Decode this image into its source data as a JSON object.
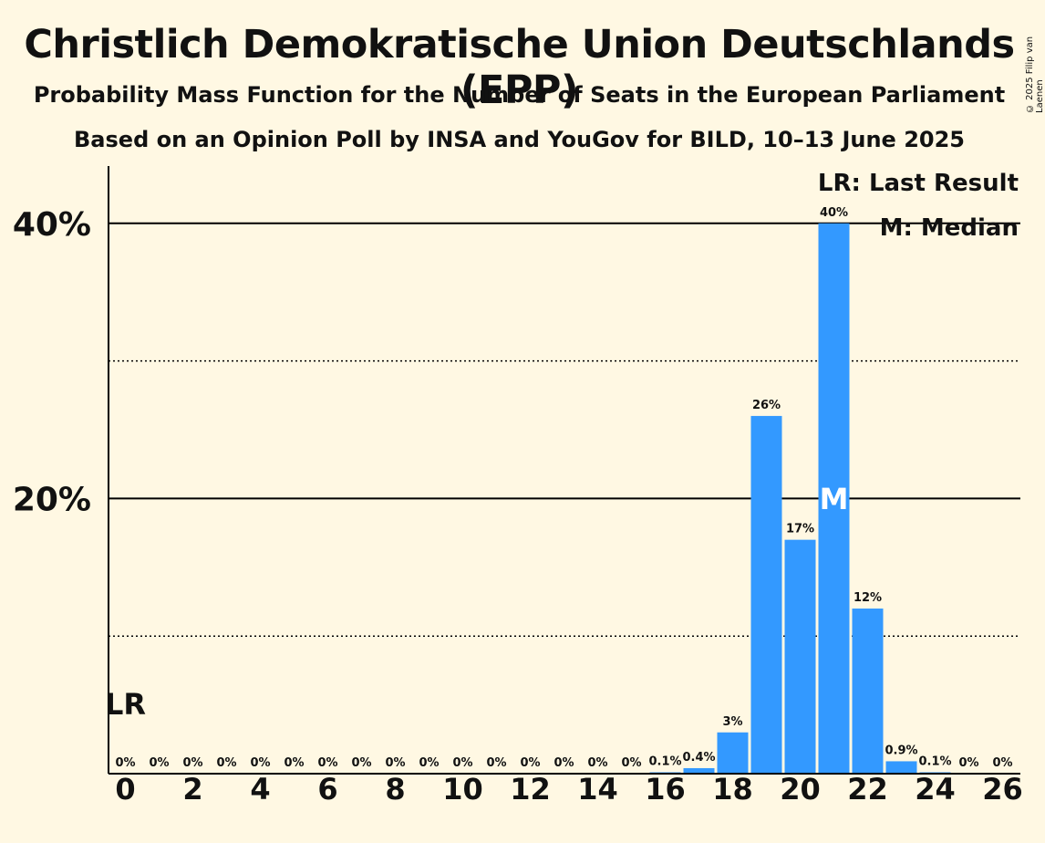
{
  "title": "Christlich Demokratische Union Deutschlands (EPP)",
  "subtitle1": "Probability Mass Function for the Number of Seats in the European Parliament",
  "subtitle2": "Based on an Opinion Poll by INSA and YouGov for BILD, 10–13 June 2025",
  "copyright": "© 2025 Filip van Laenen",
  "legend": {
    "last_result": "LR: Last Result",
    "median": "M: Median"
  },
  "colors": {
    "background": "#fff8e3",
    "bar": "#3399ff",
    "axis": "#000000"
  },
  "chart_data": {
    "type": "bar",
    "xlabel": "",
    "ylabel": "",
    "x": [
      0,
      1,
      2,
      3,
      4,
      5,
      6,
      7,
      8,
      9,
      10,
      11,
      12,
      13,
      14,
      15,
      16,
      17,
      18,
      19,
      20,
      21,
      22,
      23,
      24,
      25,
      26
    ],
    "values": [
      0,
      0,
      0,
      0,
      0,
      0,
      0,
      0,
      0,
      0,
      0,
      0,
      0,
      0,
      0,
      0,
      0.1,
      0.4,
      3,
      26,
      17,
      40,
      12,
      0.9,
      0.1,
      0,
      0
    ],
    "value_labels": [
      "0%",
      "0%",
      "0%",
      "0%",
      "0%",
      "0%",
      "0%",
      "0%",
      "0%",
      "0%",
      "0%",
      "0%",
      "0%",
      "0%",
      "0%",
      "0%",
      "0.1%",
      "0.4%",
      "3%",
      "26%",
      "17%",
      "40%",
      "12%",
      "0.9%",
      "0.1%",
      "0%",
      "0%"
    ],
    "xticks": [
      0,
      2,
      4,
      6,
      8,
      10,
      12,
      14,
      16,
      18,
      20,
      22,
      24,
      26
    ],
    "yticks": [
      {
        "value": 20,
        "label": "20%"
      },
      {
        "value": 40,
        "label": "40%"
      }
    ],
    "minor_gridlines": [
      10,
      30
    ],
    "ylim": [
      0,
      44
    ],
    "last_result_x": 0,
    "last_result_label": "LR",
    "median_x": 21,
    "median_label": "M",
    "legend_position": "top-right"
  }
}
